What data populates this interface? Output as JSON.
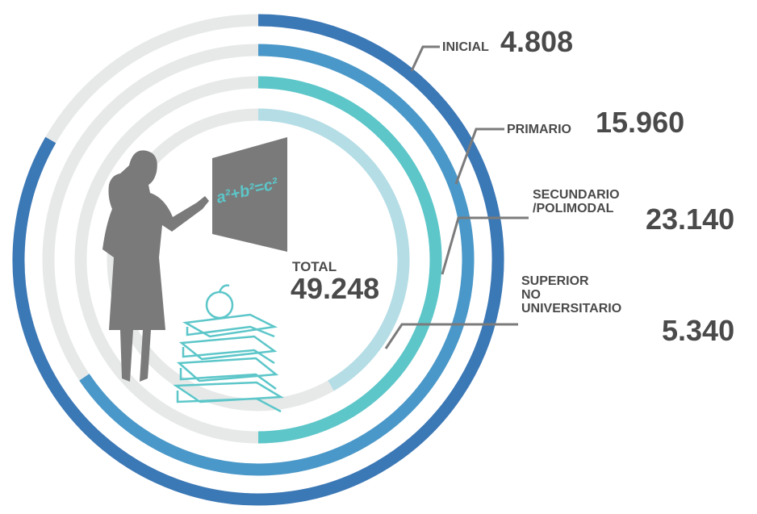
{
  "chart_data": {
    "type": "radial_bar",
    "categories": [
      [
        "INICIAL"
      ],
      [
        "PRIMARIO"
      ],
      [
        "SECUNDARIO",
        "/POLIMODAL"
      ],
      [
        "SUPERIOR",
        "NO",
        "UNIVERSITARIO"
      ]
    ],
    "values": [
      4808,
      15960,
      23140,
      5340
    ],
    "value_labels": [
      "4.808",
      "15.960",
      "23.140",
      "5.340"
    ],
    "colors": [
      "#3b78b6",
      "#4a98c9",
      "#5cc6c9",
      "#b4dde6"
    ],
    "total": {
      "label": "TOTAL",
      "value": 49248,
      "value_label": "49.248"
    },
    "formula": "a²+b²=c²"
  }
}
